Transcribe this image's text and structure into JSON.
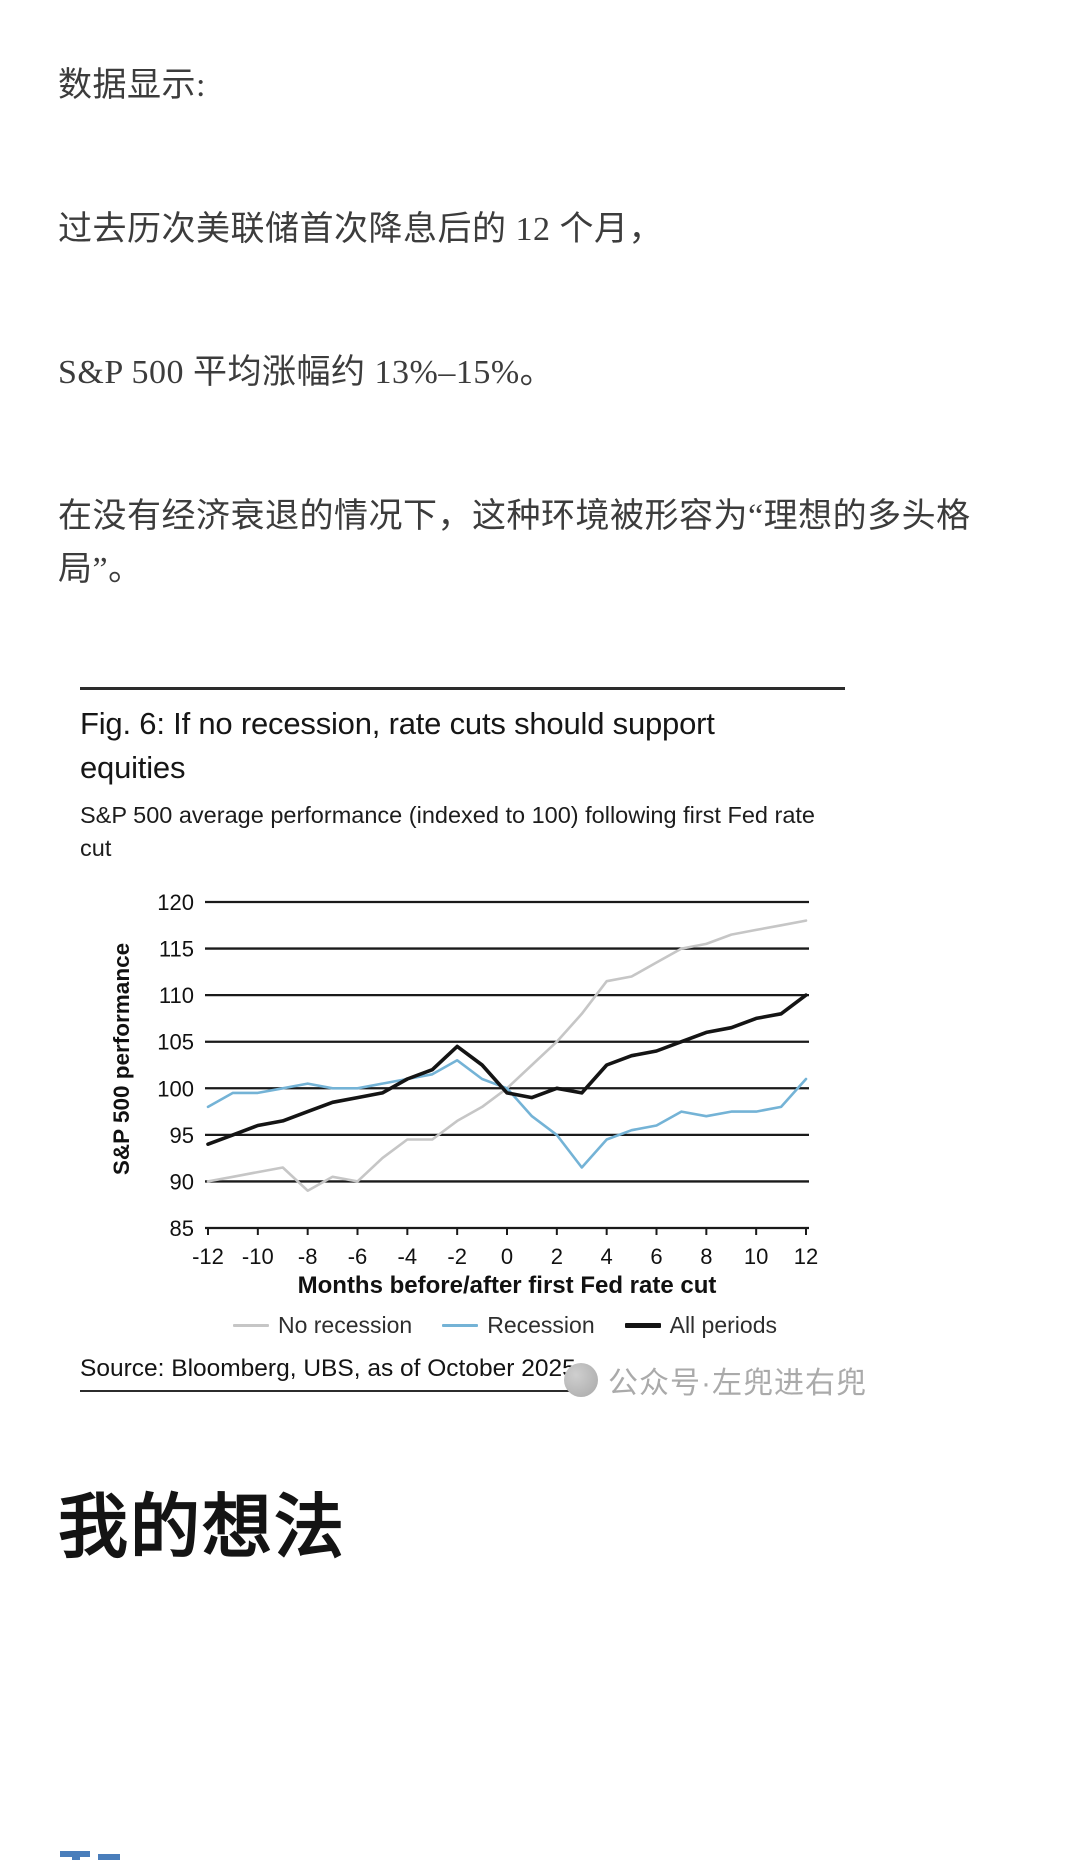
{
  "article": {
    "paragraphs": [
      "数据显示:",
      "过去历次美联储首次降息后的 12 个月，",
      "S&P 500 平均涨幅约 13%–15%。",
      "在没有经济衰退的情况下，这种环境被形容为“理想的多头格局”。"
    ],
    "section_heading": "我的想法"
  },
  "figure": {
    "title": "Fig. 6: If no recession, rate cuts should support equities",
    "subtitle": "S&P 500 average performance (indexed to 100) following first Fed rate cut"
  },
  "watermark": {
    "text": "公众号·左兜进右兜"
  },
  "chart_data": {
    "type": "line",
    "title": "Fig. 6: If no recession, rate cuts should support equities",
    "subtitle": "S&P 500 average performance (indexed to 100) following first Fed rate cut",
    "xlabel": "Months before/after first Fed rate cut",
    "ylabel": "S&P 500 performance",
    "source": "Source: Bloomberg, UBS, as of October 2025",
    "xlim": [
      -12,
      12
    ],
    "ylim": [
      85,
      120
    ],
    "xticks": [
      -12,
      -10,
      -8,
      -6,
      -4,
      -2,
      0,
      2,
      4,
      6,
      8,
      10,
      12
    ],
    "yticks": [
      85,
      90,
      95,
      100,
      105,
      110,
      115,
      120
    ],
    "grid": "horizontal",
    "legend_position": "bottom",
    "grid_color": "#1a1a1a",
    "x": [
      -12,
      -11,
      -10,
      -9,
      -8,
      -7,
      -6,
      -5,
      -4,
      -3,
      -2,
      -1,
      0,
      1,
      2,
      3,
      4,
      5,
      6,
      7,
      8,
      9,
      10,
      11,
      12
    ],
    "series": [
      {
        "name": "No recession",
        "color": "#c6c6c6",
        "width": 2.6,
        "values": [
          90,
          90.5,
          91,
          91.5,
          89,
          90.5,
          90,
          92.5,
          94.5,
          94.5,
          96.5,
          98,
          100,
          102.5,
          105,
          108,
          111.5,
          112,
          113.5,
          115,
          115.5,
          116.5,
          117,
          117.5,
          118
        ]
      },
      {
        "name": "Recession",
        "color": "#74b3d6",
        "width": 2.6,
        "values": [
          98,
          99.5,
          99.5,
          100,
          100.5,
          100,
          100,
          100.5,
          101,
          101.5,
          103,
          101,
          100,
          97,
          95,
          91.5,
          94.5,
          95.5,
          96,
          97.5,
          97,
          97.5,
          97.5,
          98,
          101
        ]
      },
      {
        "name": "All periods",
        "color": "#141414",
        "width": 3.6,
        "values": [
          94,
          95,
          96,
          96.5,
          97.5,
          98.5,
          99,
          99.5,
          101,
          102,
          104.5,
          102.5,
          99.5,
          99,
          100,
          99.5,
          102.5,
          103.5,
          104,
          105,
          106,
          106.5,
          107.5,
          108,
          110
        ]
      }
    ]
  }
}
